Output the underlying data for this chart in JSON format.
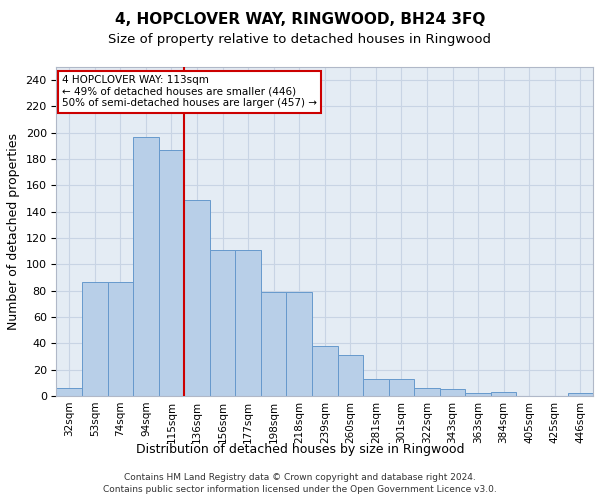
{
  "title": "4, HOPCLOVER WAY, RINGWOOD, BH24 3FQ",
  "subtitle": "Size of property relative to detached houses in Ringwood",
  "xlabel": "Distribution of detached houses by size in Ringwood",
  "ylabel": "Number of detached properties",
  "categories": [
    "32sqm",
    "53sqm",
    "74sqm",
    "94sqm",
    "115sqm",
    "136sqm",
    "156sqm",
    "177sqm",
    "198sqm",
    "218sqm",
    "239sqm",
    "260sqm",
    "281sqm",
    "301sqm",
    "322sqm",
    "343sqm",
    "363sqm",
    "384sqm",
    "405sqm",
    "425sqm",
    "446sqm"
  ],
  "values": [
    6,
    87,
    87,
    197,
    187,
    149,
    111,
    111,
    79,
    79,
    38,
    31,
    13,
    13,
    6,
    5,
    2,
    3,
    0,
    0,
    2
  ],
  "bar_color": "#b8cfe8",
  "bar_edge_color": "#6699cc",
  "vline_index": 5,
  "vline_color": "#cc0000",
  "annotation_text": "4 HOPCLOVER WAY: 113sqm\n← 49% of detached houses are smaller (446)\n50% of semi-detached houses are larger (457) →",
  "annotation_box_color": "#cc0000",
  "ylim": [
    0,
    250
  ],
  "yticks": [
    0,
    20,
    40,
    60,
    80,
    100,
    120,
    140,
    160,
    180,
    200,
    220,
    240
  ],
  "grid_color": "#c8d4e4",
  "background_color": "#e4ecf4",
  "footer_line1": "Contains HM Land Registry data © Crown copyright and database right 2024.",
  "footer_line2": "Contains public sector information licensed under the Open Government Licence v3.0.",
  "title_fontsize": 11,
  "subtitle_fontsize": 9.5,
  "xlabel_fontsize": 9,
  "ylabel_fontsize": 9,
  "footer_fontsize": 6.5
}
